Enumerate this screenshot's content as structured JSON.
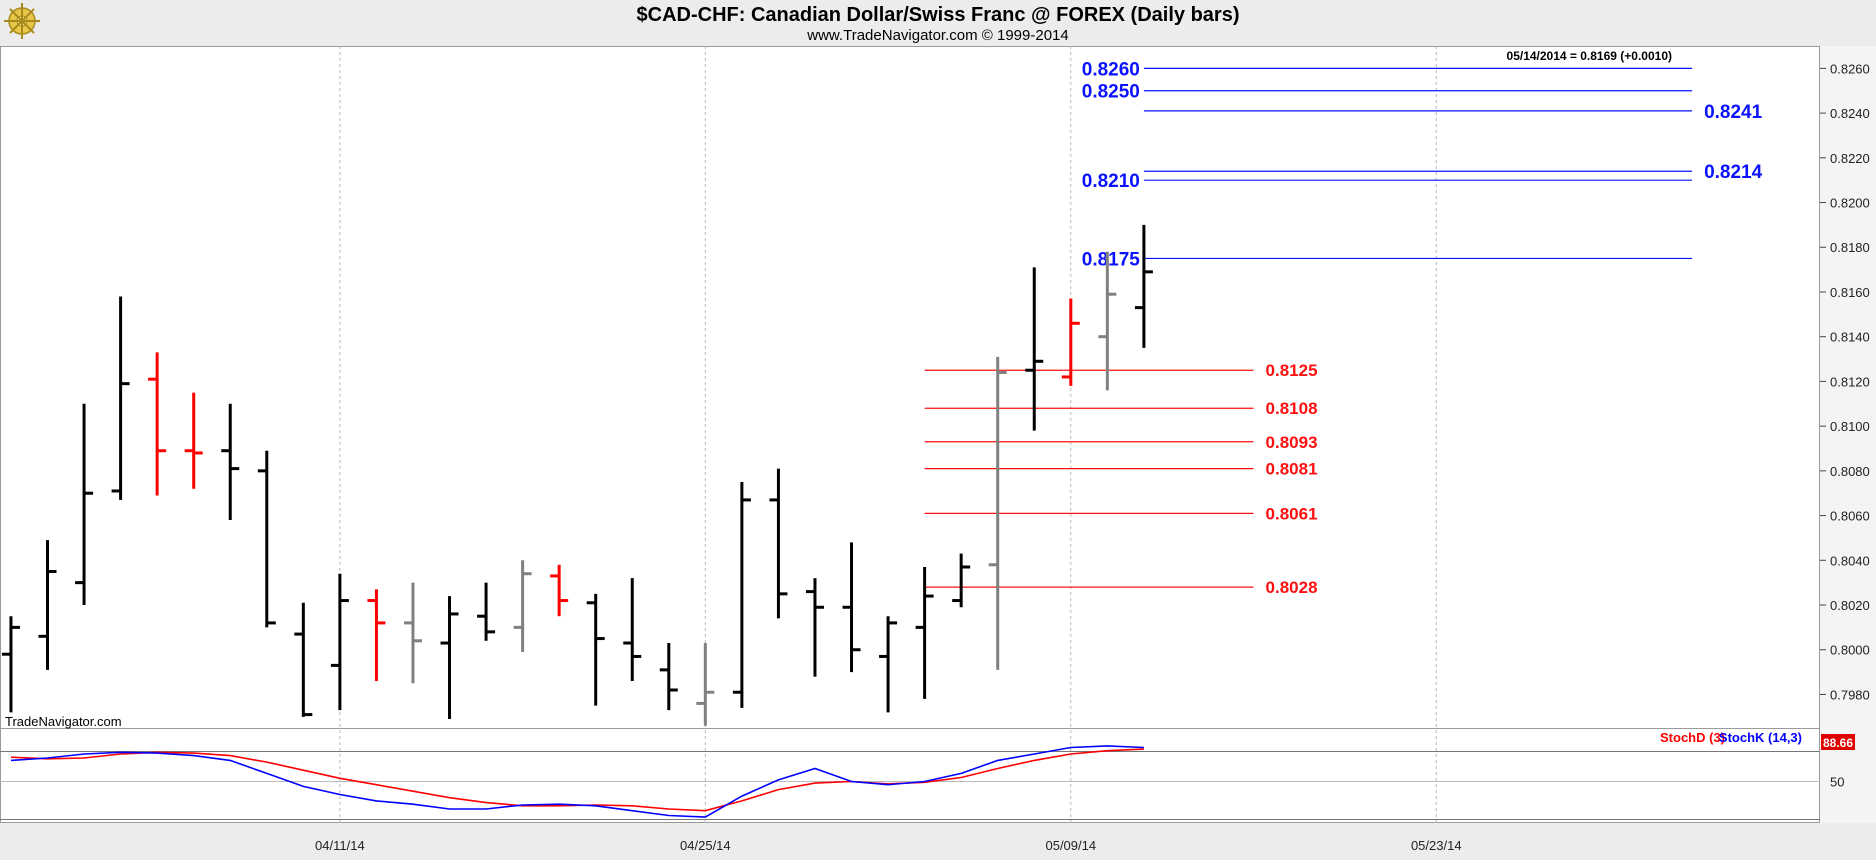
{
  "header": {
    "title": "$CAD-CHF:  Canadian Dollar/Swiss Franc @ FOREX  (Daily bars)",
    "subtitle": "www.TradeNavigator.com © 1999-2014",
    "watermark": "TradeNavigator.com",
    "last_value": "05/14/2014 = 0.8169 (+0.0010)",
    "logo_icon": "ship-wheel-logo-icon"
  },
  "colors": {
    "up": "#000000",
    "down": "#ff0000",
    "neutral": "#808080",
    "blue_level": "#0a12ff",
    "red_level": "#ff1010",
    "stoch_d": "#ff0000",
    "stoch_k": "#0000ff",
    "grid": "#b8b8b8",
    "panel_bg": "#ffffff"
  },
  "chart_data": [
    {
      "type": "ohlc",
      "title": "$CAD-CHF:  Canadian Dollar/Swiss Franc @ FOREX  (Daily bars)",
      "ylim": [
        0.7965,
        0.827
      ],
      "y_ticks": [
        "0.8260",
        "0.8240",
        "0.8220",
        "0.8200",
        "0.8180",
        "0.8160",
        "0.8140",
        "0.8120",
        "0.8100",
        "0.8080",
        "0.8060",
        "0.8040",
        "0.8020",
        "0.8000",
        "0.7980"
      ],
      "x_ticks": [
        "04/11/14",
        "04/25/14",
        "05/09/14",
        "05/23/14"
      ],
      "x_tick_index": [
        9,
        19,
        29,
        39
      ],
      "index_range": [
        -0.3,
        49.5
      ],
      "bars": [
        {
          "o": 0.7998,
          "h": 0.8015,
          "l": 0.7972,
          "c": 0.801,
          "color": "up"
        },
        {
          "o": 0.8006,
          "h": 0.8049,
          "l": 0.7991,
          "c": 0.8035,
          "color": "up"
        },
        {
          "o": 0.803,
          "h": 0.811,
          "l": 0.802,
          "c": 0.807,
          "color": "up"
        },
        {
          "o": 0.8071,
          "h": 0.8158,
          "l": 0.8067,
          "c": 0.8119,
          "color": "up"
        },
        {
          "o": 0.8121,
          "h": 0.8133,
          "l": 0.8069,
          "c": 0.8089,
          "color": "down"
        },
        {
          "o": 0.8089,
          "h": 0.8115,
          "l": 0.8072,
          "c": 0.8088,
          "color": "down"
        },
        {
          "o": 0.8089,
          "h": 0.811,
          "l": 0.8058,
          "c": 0.8081,
          "color": "up"
        },
        {
          "o": 0.808,
          "h": 0.8089,
          "l": 0.801,
          "c": 0.8012,
          "color": "up"
        },
        {
          "o": 0.8007,
          "h": 0.8021,
          "l": 0.797,
          "c": 0.7971,
          "color": "up"
        },
        {
          "o": 0.7993,
          "h": 0.8034,
          "l": 0.7973,
          "c": 0.8022,
          "color": "up"
        },
        {
          "o": 0.8022,
          "h": 0.8027,
          "l": 0.7986,
          "c": 0.8012,
          "color": "down"
        },
        {
          "o": 0.8012,
          "h": 0.803,
          "l": 0.7985,
          "c": 0.8004,
          "color": "neutral"
        },
        {
          "o": 0.8003,
          "h": 0.8024,
          "l": 0.7969,
          "c": 0.8016,
          "color": "up"
        },
        {
          "o": 0.8015,
          "h": 0.803,
          "l": 0.8004,
          "c": 0.8008,
          "color": "up"
        },
        {
          "o": 0.801,
          "h": 0.804,
          "l": 0.7999,
          "c": 0.8034,
          "color": "neutral"
        },
        {
          "o": 0.8033,
          "h": 0.8038,
          "l": 0.8015,
          "c": 0.8022,
          "color": "down"
        },
        {
          "o": 0.8021,
          "h": 0.8025,
          "l": 0.7975,
          "c": 0.8005,
          "color": "up"
        },
        {
          "o": 0.8003,
          "h": 0.8032,
          "l": 0.7986,
          "c": 0.7997,
          "color": "up"
        },
        {
          "o": 0.7991,
          "h": 0.8003,
          "l": 0.7973,
          "c": 0.7982,
          "color": "up"
        },
        {
          "o": 0.7976,
          "h": 0.8003,
          "l": 0.7966,
          "c": 0.7981,
          "color": "neutral"
        },
        {
          "o": 0.7981,
          "h": 0.8075,
          "l": 0.7974,
          "c": 0.8067,
          "color": "up"
        },
        {
          "o": 0.8067,
          "h": 0.8081,
          "l": 0.8014,
          "c": 0.8025,
          "color": "up"
        },
        {
          "o": 0.8026,
          "h": 0.8032,
          "l": 0.7988,
          "c": 0.8019,
          "color": "up"
        },
        {
          "o": 0.8019,
          "h": 0.8048,
          "l": 0.799,
          "c": 0.8,
          "color": "up"
        },
        {
          "o": 0.7997,
          "h": 0.8015,
          "l": 0.7972,
          "c": 0.8012,
          "color": "up"
        },
        {
          "o": 0.801,
          "h": 0.8037,
          "l": 0.7978,
          "c": 0.8024,
          "color": "up"
        },
        {
          "o": 0.8022,
          "h": 0.8043,
          "l": 0.8019,
          "c": 0.8037,
          "color": "up"
        },
        {
          "o": 0.8038,
          "h": 0.8131,
          "l": 0.7991,
          "c": 0.8124,
          "color": "neutral"
        },
        {
          "o": 0.8125,
          "h": 0.8171,
          "l": 0.8098,
          "c": 0.8129,
          "color": "up"
        },
        {
          "o": 0.8122,
          "h": 0.8157,
          "l": 0.8118,
          "c": 0.8146,
          "color": "down"
        },
        {
          "o": 0.814,
          "h": 0.8178,
          "l": 0.8116,
          "c": 0.8159,
          "color": "neutral"
        },
        {
          "o": 0.8153,
          "h": 0.819,
          "l": 0.8135,
          "c": 0.8169,
          "color": "up"
        }
      ],
      "levels_blue": [
        {
          "label": "0.8260",
          "value": 0.826,
          "side": "left",
          "x_from": 31,
          "x_to": 46
        },
        {
          "label": "0.8250",
          "value": 0.825,
          "side": "left",
          "x_from": 31,
          "x_to": 46
        },
        {
          "label": "0.8241",
          "value": 0.8241,
          "side": "right",
          "x_from": 31,
          "x_to": 46
        },
        {
          "label": "0.8214",
          "value": 0.8214,
          "side": "right",
          "x_from": 31,
          "x_to": 46
        },
        {
          "label": "0.8210",
          "value": 0.821,
          "side": "left",
          "x_from": 31,
          "x_to": 46
        },
        {
          "label": "0.8175",
          "value": 0.8175,
          "side": "left",
          "x_from": 31,
          "x_to": 46
        }
      ],
      "levels_red": [
        {
          "label": "0.8125",
          "value": 0.8125
        },
        {
          "label": "0.8108",
          "value": 0.8108
        },
        {
          "label": "0.8093",
          "value": 0.8093
        },
        {
          "label": "0.8081",
          "value": 0.8081
        },
        {
          "label": "0.8061",
          "value": 0.8061
        },
        {
          "label": "0.8028",
          "value": 0.8028
        }
      ]
    },
    {
      "type": "line",
      "title": "StochD (3)  StochK (14,3)",
      "ylim": [
        0,
        100
      ],
      "y_ticks": [
        "50"
      ],
      "current_value": "88.66",
      "series": [
        {
          "name": "StochD (3)",
          "color": "#ff0000",
          "values": [
            80,
            78,
            79,
            84,
            86,
            85,
            82,
            74,
            64,
            54,
            46,
            38,
            30,
            24,
            20,
            20,
            21,
            20,
            16,
            14,
            26,
            40,
            48,
            50,
            47,
            49,
            55,
            66,
            76,
            84,
            88,
            90
          ]
        },
        {
          "name": "StochK (14,3)",
          "color": "#0000ff",
          "values": [
            76,
            79,
            84,
            86,
            85,
            82,
            76,
            60,
            44,
            34,
            26,
            22,
            16,
            16,
            21,
            22,
            20,
            14,
            8,
            6,
            32,
            52,
            66,
            50,
            46,
            50,
            60,
            76,
            84,
            92,
            94,
            92
          ]
        }
      ]
    }
  ]
}
